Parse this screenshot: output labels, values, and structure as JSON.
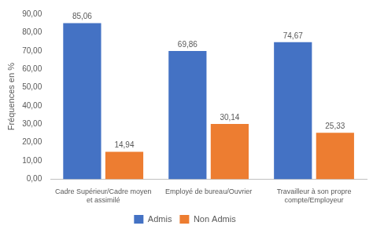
{
  "chart_data": {
    "type": "bar",
    "categories": [
      "Cadre Supérieur/Cadre moyen\net assimilé",
      "Employé de bureau/Ouvrier",
      "Travailleur à son propre\ncompte/Employeur"
    ],
    "series": [
      {
        "name": "Admis",
        "color": "#4472C4",
        "values": [
          85.06,
          69.86,
          74.67
        ],
        "value_labels": [
          "85,06",
          "69,86",
          "74,67"
        ]
      },
      {
        "name": "Non Admis",
        "color": "#ED7D31",
        "values": [
          14.94,
          30.14,
          25.33
        ],
        "value_labels": [
          "14,94",
          "30,14",
          "25,33"
        ]
      }
    ],
    "ylabel": "Fréquences en %",
    "ylim": [
      0,
      90
    ],
    "yticks": [
      {
        "value": 0,
        "label": "0,00"
      },
      {
        "value": 10,
        "label": "10,00"
      },
      {
        "value": 20,
        "label": "20,00"
      },
      {
        "value": 30,
        "label": "30,00"
      },
      {
        "value": 40,
        "label": "40,00"
      },
      {
        "value": 50,
        "label": "50,00"
      },
      {
        "value": 60,
        "label": "60,00"
      },
      {
        "value": 70,
        "label": "70,00"
      },
      {
        "value": 80,
        "label": "80,00"
      },
      {
        "value": 90,
        "label": "90,00"
      }
    ],
    "grid": false,
    "legend": "bottom",
    "data_labels": true
  }
}
